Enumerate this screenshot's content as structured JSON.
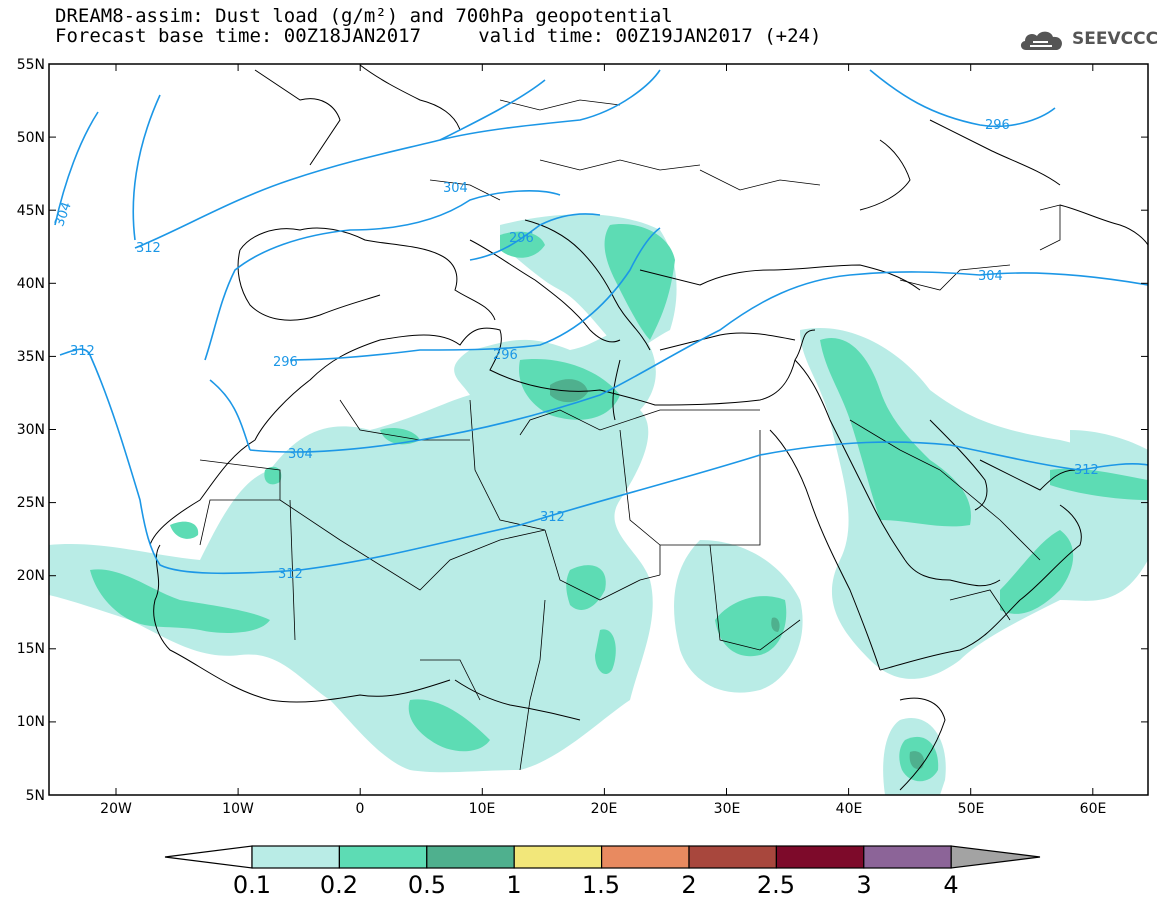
{
  "header": {
    "line1": "DREAM8-assim: Dust load (g/m²) and 700hPa geopotential",
    "line2": "Forecast base time: 00Z18JAN2017     valid time: 00Z19JAN2017 (+24)"
  },
  "logo": {
    "text": "SEEVCCC",
    "icon": "cloud-icon"
  },
  "map": {
    "lat_labels": [
      "55N",
      "50N",
      "45N",
      "40N",
      "35N",
      "30N",
      "25N",
      "20N",
      "15N",
      "10N",
      "5N"
    ],
    "lon_labels": [
      "20W",
      "10W",
      "0",
      "10E",
      "20E",
      "30E",
      "40E",
      "50E",
      "60E"
    ],
    "contour_color": "#1c97e6",
    "contour_labels": [
      "304",
      "312",
      "296",
      "304",
      "296",
      "312",
      "304",
      "312",
      "312",
      "296",
      "304",
      "312",
      "296"
    ]
  },
  "colorbar": {
    "ticks": [
      "0.1",
      "0.2",
      "0.5",
      "1",
      "1.5",
      "2",
      "2.5",
      "3",
      "4"
    ],
    "colors": [
      "#ffffff",
      "#b9ece6",
      "#5ddcb4",
      "#4fb08e",
      "#f2e77a",
      "#e88a60",
      "#a8473d",
      "#7d0a2a",
      "#8c6498",
      "#a3a3a3"
    ]
  }
}
